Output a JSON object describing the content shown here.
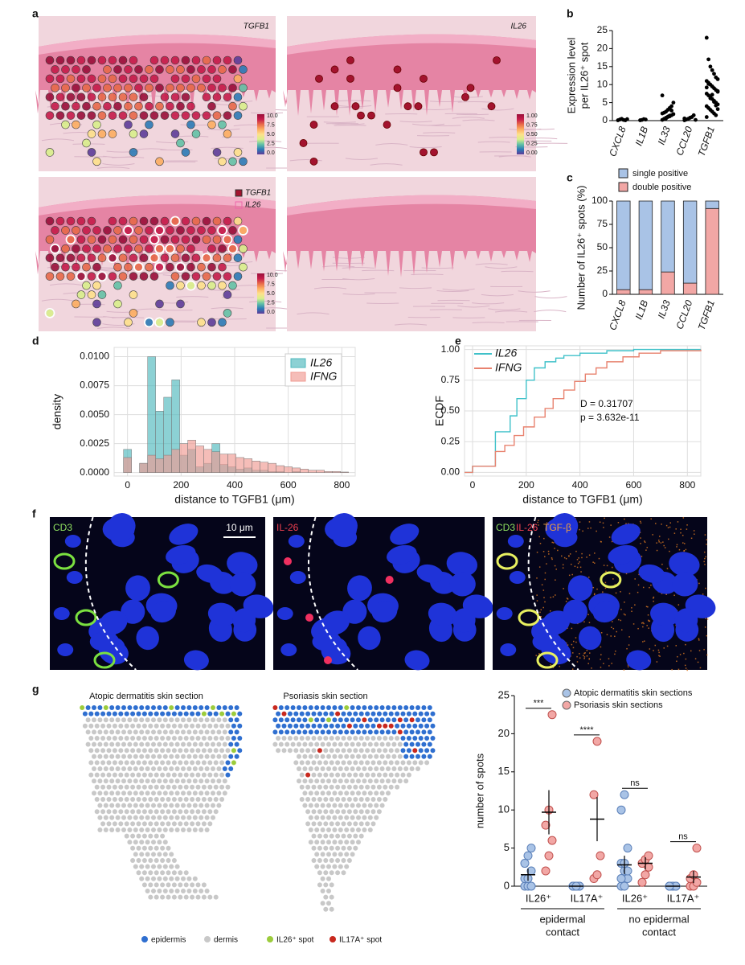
{
  "letters": [
    "a",
    "b",
    "c",
    "d",
    "e",
    "f",
    "g"
  ],
  "images": {
    "a": {
      "labels": [
        "TGFB1",
        "IL26"
      ],
      "legend": [
        "TGFB1",
        "IL26"
      ],
      "colorbar1": [
        "10.0",
        "7.5",
        "5.0",
        "2.5",
        "0.0"
      ],
      "colorbar2": [
        "1.00",
        "0.75",
        "0.50",
        "0.25",
        "0.00"
      ]
    },
    "f": {
      "scale": "10 μm",
      "channels": [
        "CD3",
        "IL-26",
        "TGF-β"
      ]
    },
    "g": {
      "titles": [
        "Atopic dermatitis skin section",
        "Psoriasis skin section"
      ],
      "legend": [
        {
          "label": "epidermis",
          "color": "#2f6fd0"
        },
        {
          "label": "dermis",
          "color": "#c8c8c8"
        },
        {
          "label": "IL26⁺ spot",
          "color": "#9ccc3c"
        },
        {
          "label": "IL17A⁺ spot",
          "color": "#c8281e"
        }
      ]
    }
  },
  "chart_data": [
    {
      "type": "strip",
      "ylabel": [
        "Expression level",
        "per IL26⁺ spot"
      ],
      "categories": [
        "CXCL8",
        "IL1B",
        "IL33",
        "CCL20",
        "TGFB1"
      ],
      "values": [
        [
          0.1,
          0.3,
          0.5,
          0.2,
          0.1,
          0.4
        ],
        [
          0.1,
          0.2,
          0.4,
          0.3
        ],
        [
          0.2,
          0.5,
          0.8,
          1,
          1.2,
          1.5,
          1.8,
          2,
          2.2,
          2.5,
          3,
          3.5,
          4,
          5,
          7,
          0.4,
          0.6,
          1.1,
          1.4,
          2.8
        ],
        [
          0.1,
          0.3,
          0.5,
          0.8,
          1,
          1.5,
          0.2,
          0.6
        ],
        [
          23,
          17,
          15,
          14,
          13,
          12,
          11.5,
          11,
          10.5,
          10,
          9.5,
          9,
          8.5,
          8,
          7.5,
          7,
          6.5,
          6,
          5.5,
          5,
          4.5,
          4,
          3.5,
          3,
          2.5,
          2,
          1.5,
          8.2,
          9.2,
          10.2,
          6.2,
          7.2,
          5.2,
          4.2,
          3.2,
          1
        ]
      ],
      "color": "#000000",
      "ylim": [
        0,
        25
      ],
      "yticks": [
        0,
        5,
        10,
        15,
        20,
        25
      ]
    },
    {
      "type": "stacked_bar",
      "ylabel": "Number of IL26⁺ spots (%)",
      "categories": [
        "CXCL8",
        "IL1B",
        "IL33",
        "CCL20",
        "TGFB1"
      ],
      "series": [
        {
          "name": "single positive",
          "color": "#a9c3e6",
          "values": [
            95,
            95,
            76,
            88,
            8
          ]
        },
        {
          "name": "double positive",
          "color": "#f2a7a5",
          "values": [
            5,
            5,
            24,
            12,
            92
          ]
        }
      ],
      "ylim": [
        0,
        100
      ],
      "yticks": [
        0,
        25,
        50,
        75,
        100
      ]
    },
    {
      "type": "histogram",
      "ylabel": "density",
      "xlabel": "distance to TGFB1 (μm)",
      "bins": [
        -15,
        15,
        45,
        75,
        105,
        135,
        165,
        195,
        225,
        255,
        285,
        315,
        345,
        375,
        405,
        435,
        465,
        495,
        525,
        555,
        585,
        615,
        645,
        675,
        705,
        735,
        765,
        795,
        825
      ],
      "series": [
        {
          "name": "IL26",
          "color": "#4fb8bd",
          "values": [
            0.002,
            0,
            0.0008,
            0.01,
            0.0053,
            0.0065,
            0.008,
            0.0015,
            0.002,
            0.0005,
            0.0008,
            0.0025,
            0.0007,
            0.0005,
            0.0003,
            0.0004,
            0.0002,
            0.0002,
            0.0001,
            0.0001,
            0,
            0.0001,
            0,
            0,
            0,
            0,
            0,
            0
          ]
        },
        {
          "name": "IFNG",
          "color": "#f09a92",
          "values": [
            0.0013,
            0,
            0.0008,
            0.0015,
            0.0012,
            0.0015,
            0.002,
            0.0025,
            0.0028,
            0.0023,
            0.002,
            0.0018,
            0.0016,
            0.0016,
            0.0013,
            0.0012,
            0.001,
            0.0009,
            0.0008,
            0.0006,
            0.0005,
            0.0004,
            0.0003,
            0.0002,
            0.0002,
            0.0001,
            0.0001,
            5e-05
          ]
        }
      ],
      "xlim": [
        -50,
        850
      ],
      "xticks": [
        0,
        200,
        400,
        600,
        800
      ],
      "ylim": [
        -0.0003,
        0.0108
      ],
      "yticks": [
        {
          "value": 0,
          "label": "0.0000"
        },
        0.0025,
        {
          "value": 0.005,
          "label": "0.0050"
        },
        0.0075,
        {
          "value": 0.01,
          "label": "0.0100"
        }
      ],
      "grid": true
    },
    {
      "type": "step",
      "ylabel": "ECDF",
      "xlabel": "distance to TGFB1 (μm)",
      "annotations": [
        "D = 0.31707",
        "p = 3.632e-11"
      ],
      "series": [
        {
          "name": "IL26",
          "color": "#3fc1c9",
          "x": [
            0,
            85,
            140,
            165,
            200,
            230,
            270,
            310,
            340,
            400,
            500,
            600,
            850
          ],
          "values": [
            0.05,
            0.33,
            0.46,
            0.6,
            0.75,
            0.85,
            0.9,
            0.93,
            0.95,
            0.97,
            0.99,
            1,
            1
          ]
        },
        {
          "name": "IFNG",
          "color": "#e8826f",
          "x": [
            0,
            85,
            120,
            155,
            190,
            230,
            270,
            300,
            340,
            380,
            420,
            460,
            500,
            560,
            620,
            700,
            850
          ],
          "values": [
            0.05,
            0.17,
            0.22,
            0.3,
            0.37,
            0.45,
            0.52,
            0.6,
            0.67,
            0.74,
            0.8,
            0.85,
            0.9,
            0.94,
            0.97,
            0.99,
            1
          ]
        }
      ],
      "xlim": [
        -30,
        850
      ],
      "xticks": [
        0,
        200,
        400,
        600,
        800
      ],
      "ylim": [
        -0.03,
        1.03
      ],
      "yticks": [
        {
          "value": 0,
          "label": "0.00"
        },
        0.25,
        {
          "value": 0.5,
          "label": "0.50"
        },
        0.75,
        {
          "value": 1,
          "label": "1.00"
        }
      ],
      "grid": true
    },
    {
      "type": "dot_error",
      "ylabel": "number of spots",
      "categories": [
        "IL26⁺",
        "IL17A⁺",
        "IL26⁺",
        "IL17A⁺"
      ],
      "groups": [
        [
          "epidermal",
          "contact"
        ],
        [
          "no epidermal",
          "contact"
        ]
      ],
      "significance": [
        "***",
        "****",
        "ns",
        "ns"
      ],
      "series": [
        {
          "name": "Atopic dermatitis skin sections",
          "color": "#a9c3e6",
          "values": [
            [
              0,
              0,
              0,
              1,
              1,
              2,
              3,
              4,
              5
            ],
            [
              0,
              0,
              0,
              0,
              0,
              0,
              0,
              0
            ],
            [
              0,
              0,
              1,
              1,
              2,
              2,
              3,
              3,
              5,
              10,
              12
            ],
            [
              0,
              0,
              0,
              0,
              0,
              0,
              0
            ]
          ],
          "means": [
            1.5,
            0,
            2.8,
            0
          ],
          "errors": [
            0.8,
            0,
            1.2,
            0
          ]
        },
        {
          "name": "Psoriasis skin sections",
          "color": "#f2a7a5",
          "values": [
            [
              2,
              4,
              6,
              8,
              10,
              22.5
            ],
            [
              1,
              1.5,
              4,
              12,
              19
            ],
            [
              0.5,
              1.5,
              2.5,
              3,
              3.5,
              4
            ],
            [
              0,
              0,
              0.5,
              1,
              1.5,
              5
            ]
          ],
          "means": [
            9.7,
            8.8,
            3,
            1.2
          ],
          "errors": [
            2.9,
            2.9,
            0.8,
            0.8
          ]
        }
      ],
      "ylim": [
        0,
        25
      ],
      "yticks": [
        0,
        5,
        10,
        15,
        20,
        25
      ]
    }
  ]
}
